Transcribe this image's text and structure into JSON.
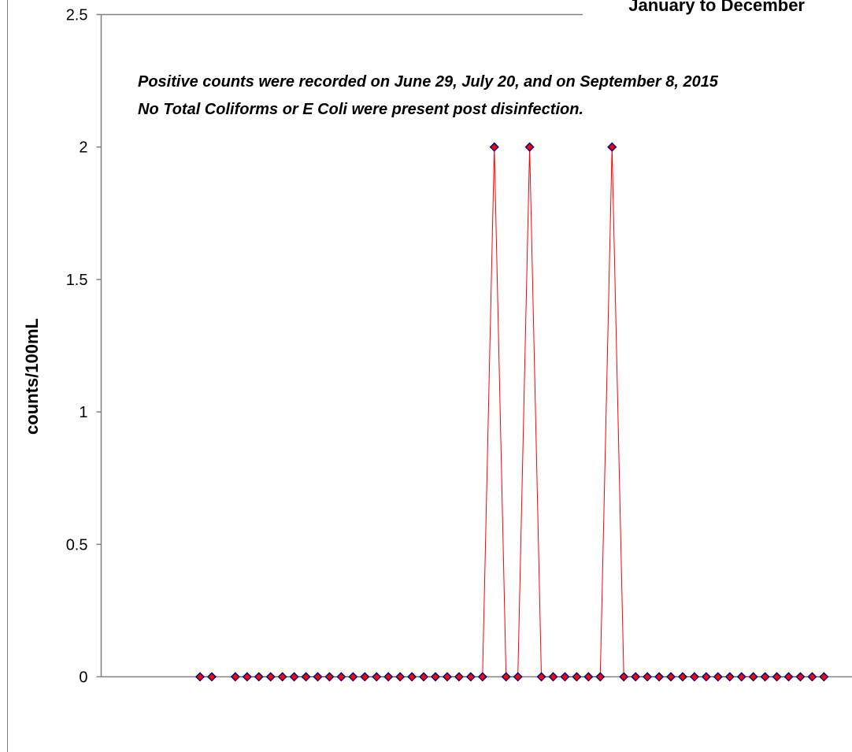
{
  "chart_data": {
    "type": "line",
    "title": "January to December",
    "xlabel": "",
    "ylabel": "counts/100mL",
    "ylim": [
      0,
      2.5
    ],
    "y_ticks": [
      "0",
      "0.5",
      "1",
      "1.5",
      "2",
      "2.5"
    ],
    "grid": false,
    "legend": "none",
    "annotations": [
      "Positive counts were recorded on June 29, July 20, and on September 8, 2015",
      "No Total Coliforms or E Coli were present post disinfection."
    ],
    "series": [
      {
        "values": [
          0,
          0,
          null,
          0,
          0,
          0,
          0,
          0,
          0,
          0,
          0,
          0,
          0,
          0,
          0,
          0,
          0,
          0,
          0,
          0,
          0,
          0,
          0,
          0,
          0,
          2,
          0,
          0,
          2,
          0,
          0,
          0,
          0,
          0,
          0,
          2,
          0,
          0,
          0,
          0,
          0,
          0,
          0,
          0,
          0,
          0,
          0,
          0,
          0,
          0,
          0,
          0,
          0,
          0
        ],
        "line_color": "#ff0000",
        "marker_fill": "#ff0000",
        "marker_edge": "#00008b"
      }
    ]
  }
}
